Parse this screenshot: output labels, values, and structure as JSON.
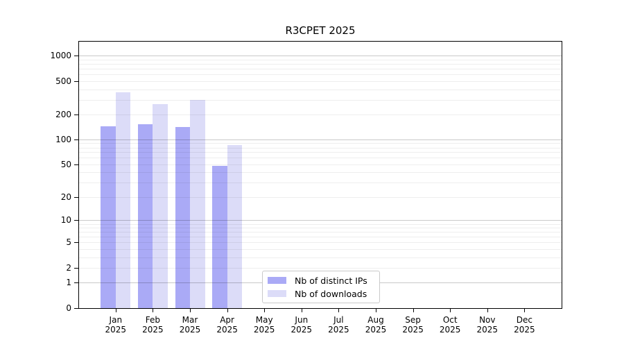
{
  "title": "R3CPET 2025",
  "legend": {
    "items": [
      {
        "label": "Nb of distinct IPs",
        "color": "#aaaaf6"
      },
      {
        "label": "Nb of downloads",
        "color": "#dcdcf8"
      }
    ]
  },
  "chart_data": {
    "type": "bar",
    "title": "R3CPET 2025",
    "categories": [
      "Jan",
      "Feb",
      "Mar",
      "Apr",
      "May",
      "Jun",
      "Jul",
      "Aug",
      "Sep",
      "Oct",
      "Nov",
      "Dec"
    ],
    "category_year": "2025",
    "series": [
      {
        "name": "Nb of distinct IPs",
        "color": "#aaaaf6",
        "values": [
          145,
          151,
          140,
          48,
          0,
          0,
          0,
          0,
          0,
          0,
          0,
          0
        ]
      },
      {
        "name": "Nb of downloads",
        "color": "#dcdcf8",
        "values": [
          368,
          263,
          297,
          85,
          0,
          0,
          0,
          0,
          0,
          0,
          0,
          0
        ]
      }
    ],
    "xlabel": "",
    "ylabel": "",
    "yscale": "log10(value+1)",
    "yticks": [
      0,
      1,
      2,
      5,
      10,
      20,
      50,
      100,
      200,
      500,
      1000
    ],
    "ylim": [
      0,
      1430
    ],
    "major_gridlines": [
      1,
      10,
      100,
      1000
    ],
    "minor_gridline_decades": [
      1,
      10,
      100
    ],
    "minor_gridline_multiples": [
      2,
      3,
      4,
      5,
      6,
      7,
      8,
      9
    ],
    "grid": "horizontal",
    "legend_position": "inside-bottom-center"
  }
}
